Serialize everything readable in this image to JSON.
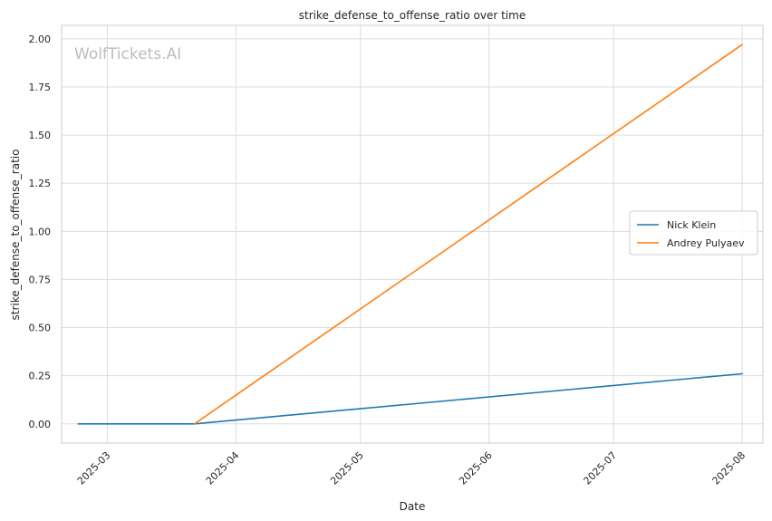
{
  "chart_data": {
    "type": "line",
    "title": "strike_defense_to_offense_ratio over time",
    "xlabel": "Date",
    "ylabel": "strike_defense_to_offense_ratio",
    "watermark": "WolfTickets.AI",
    "x_ticks": [
      "2025-03",
      "2025-04",
      "2025-05",
      "2025-06",
      "2025-07",
      "2025-08"
    ],
    "y_ticks": [
      "0.00",
      "0.25",
      "0.50",
      "0.75",
      "1.00",
      "1.25",
      "1.50",
      "1.75",
      "2.00"
    ],
    "ylim": [
      -0.1,
      2.07
    ],
    "xlim": [
      "2025-02-18",
      "2025-08-06"
    ],
    "grid": true,
    "legend": "center-right",
    "series": [
      {
        "name": "Nick Klein",
        "color": "#1f77b4",
        "points": [
          {
            "x": "2025-02-22",
            "y": 0.0
          },
          {
            "x": "2025-03-22",
            "y": 0.0
          },
          {
            "x": "2025-08-01",
            "y": 0.26
          }
        ]
      },
      {
        "name": "Andrey Pulyaev",
        "color": "#ff7f0e",
        "points": [
          {
            "x": "2025-03-22",
            "y": 0.0
          },
          {
            "x": "2025-08-01",
            "y": 1.97
          }
        ]
      }
    ]
  }
}
